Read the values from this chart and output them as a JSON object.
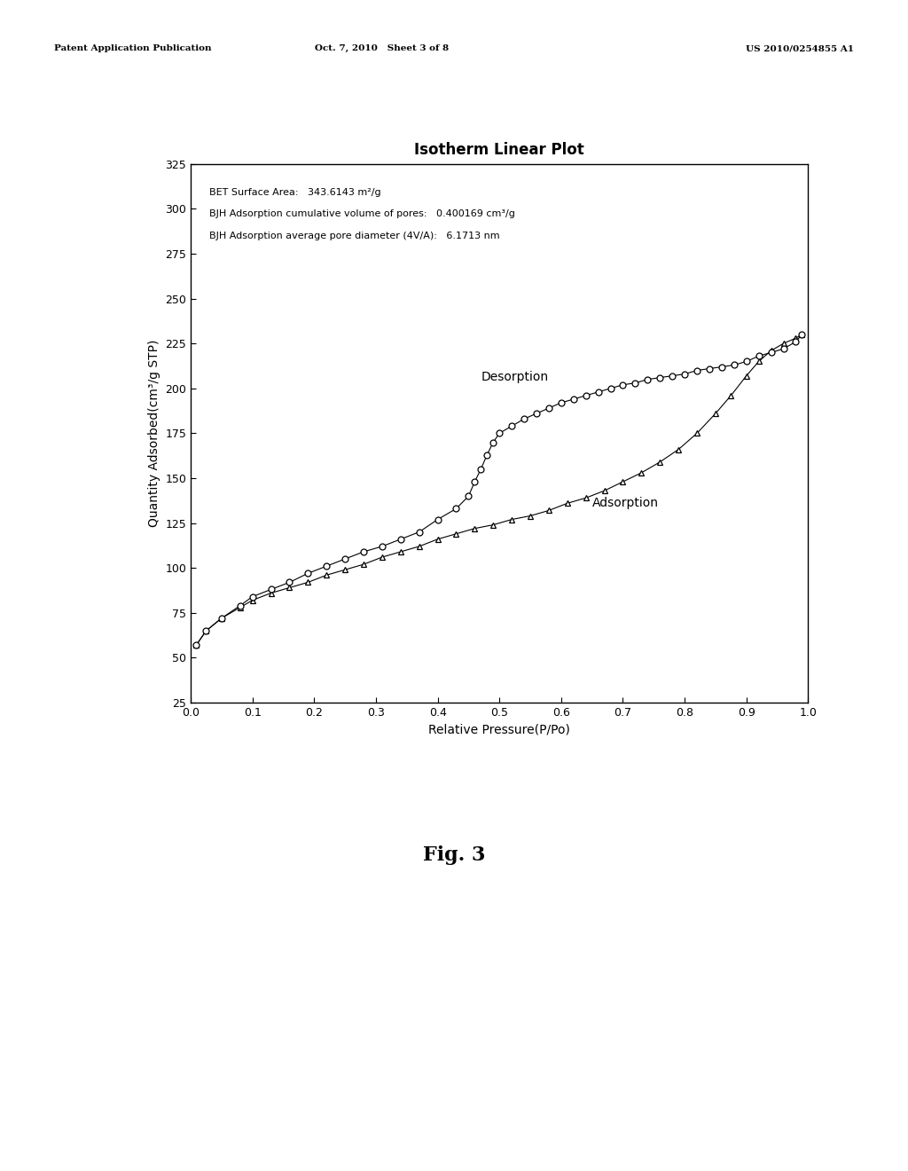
{
  "title": "Isotherm Linear Plot",
  "xlabel": "Relative Pressure(P/Po)",
  "ylabel": "Quantity Adsorbed(cm³/g STP)",
  "xlim": [
    0.0,
    1.0
  ],
  "ylim": [
    25,
    325
  ],
  "yticks": [
    25,
    50,
    75,
    100,
    125,
    150,
    175,
    200,
    225,
    250,
    275,
    300,
    325
  ],
  "xticks": [
    0.0,
    0.1,
    0.2,
    0.3,
    0.4,
    0.5,
    0.6,
    0.7,
    0.8,
    0.9,
    1.0
  ],
  "annotation_lines": [
    "BET Surface Area:   343.6143 m²/g",
    "BJH Adsorption cumulative volume of pores:   0.400169 cm³/g",
    "BJH Adsorption average pore diameter (4V/A):   6.1713 nm"
  ],
  "header_left": "Patent Application Publication",
  "header_center": "Oct. 7, 2010   Sheet 3 of 8",
  "header_right": "US 2010/0254855 A1",
  "fig_label": "Fig. 3",
  "adsorption_x": [
    0.009,
    0.025,
    0.05,
    0.08,
    0.1,
    0.13,
    0.16,
    0.19,
    0.22,
    0.25,
    0.28,
    0.31,
    0.34,
    0.37,
    0.4,
    0.43,
    0.46,
    0.49,
    0.52,
    0.55,
    0.58,
    0.61,
    0.64,
    0.67,
    0.7,
    0.73,
    0.76,
    0.79,
    0.82,
    0.85,
    0.875,
    0.9,
    0.92,
    0.94,
    0.96,
    0.98,
    0.99
  ],
  "adsorption_y": [
    57,
    65,
    72,
    78,
    82,
    86,
    89,
    92,
    96,
    99,
    102,
    106,
    109,
    112,
    116,
    119,
    122,
    124,
    127,
    129,
    132,
    136,
    139,
    143,
    148,
    153,
    159,
    166,
    175,
    186,
    196,
    207,
    215,
    221,
    225,
    228,
    230
  ],
  "desorption_x": [
    0.009,
    0.025,
    0.05,
    0.08,
    0.1,
    0.13,
    0.16,
    0.19,
    0.22,
    0.25,
    0.28,
    0.31,
    0.34,
    0.37,
    0.4,
    0.43,
    0.45,
    0.46,
    0.47,
    0.48,
    0.49,
    0.5,
    0.52,
    0.54,
    0.56,
    0.58,
    0.6,
    0.62,
    0.64,
    0.66,
    0.68,
    0.7,
    0.72,
    0.74,
    0.76,
    0.78,
    0.8,
    0.82,
    0.84,
    0.86,
    0.88,
    0.9,
    0.92,
    0.94,
    0.96,
    0.98,
    0.99
  ],
  "desorption_y": [
    57,
    65,
    72,
    79,
    84,
    88,
    92,
    97,
    101,
    105,
    109,
    112,
    116,
    120,
    127,
    133,
    140,
    148,
    155,
    163,
    170,
    175,
    179,
    183,
    186,
    189,
    192,
    194,
    196,
    198,
    200,
    202,
    203,
    205,
    206,
    207,
    208,
    210,
    211,
    212,
    213,
    215,
    218,
    220,
    222,
    226,
    230
  ],
  "background_color": "#ffffff",
  "line_color": "#000000",
  "title_fontsize": 12,
  "label_fontsize": 10,
  "tick_fontsize": 9,
  "annotation_fontsize": 8
}
